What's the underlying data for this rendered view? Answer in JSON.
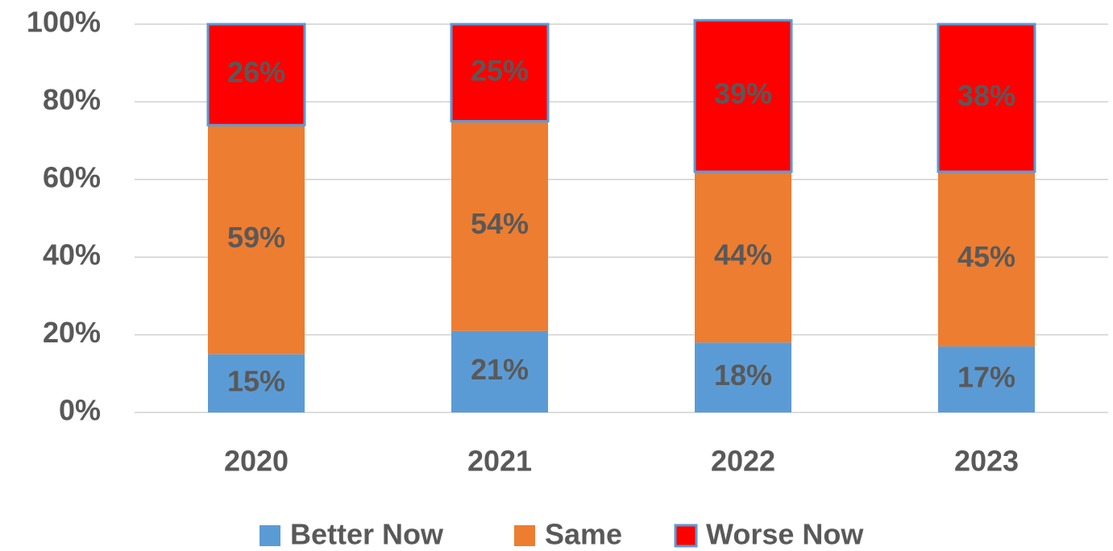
{
  "chart_data": {
    "type": "stacked_bar",
    "categories": [
      "2020",
      "2021",
      "2022",
      "2023"
    ],
    "series": [
      {
        "name": "Better Now",
        "color": "#5b9bd5",
        "values": [
          15,
          21,
          18,
          17
        ],
        "value_labels": [
          "15%",
          "21%",
          "18%",
          "17%"
        ]
      },
      {
        "name": "Same",
        "color": "#ed7d31",
        "values": [
          59,
          54,
          44,
          45
        ],
        "value_labels": [
          "59%",
          "54%",
          "44%",
          "45%"
        ]
      },
      {
        "name": "Worse Now",
        "color": "#ff0000",
        "outline": "#5b9bd5",
        "values": [
          26,
          25,
          39,
          38
        ],
        "value_labels": [
          "26%",
          "25%",
          "39%",
          "38%"
        ]
      }
    ],
    "ylim": [
      0,
      100
    ],
    "yticks": [
      {
        "value": 0,
        "label": "0%"
      },
      {
        "value": 20,
        "label": "20%"
      },
      {
        "value": 40,
        "label": "40%"
      },
      {
        "value": 60,
        "label": "60%"
      },
      {
        "value": 80,
        "label": "80%"
      },
      {
        "value": 100,
        "label": "100%"
      }
    ],
    "grid": true,
    "legend": "bottom"
  }
}
